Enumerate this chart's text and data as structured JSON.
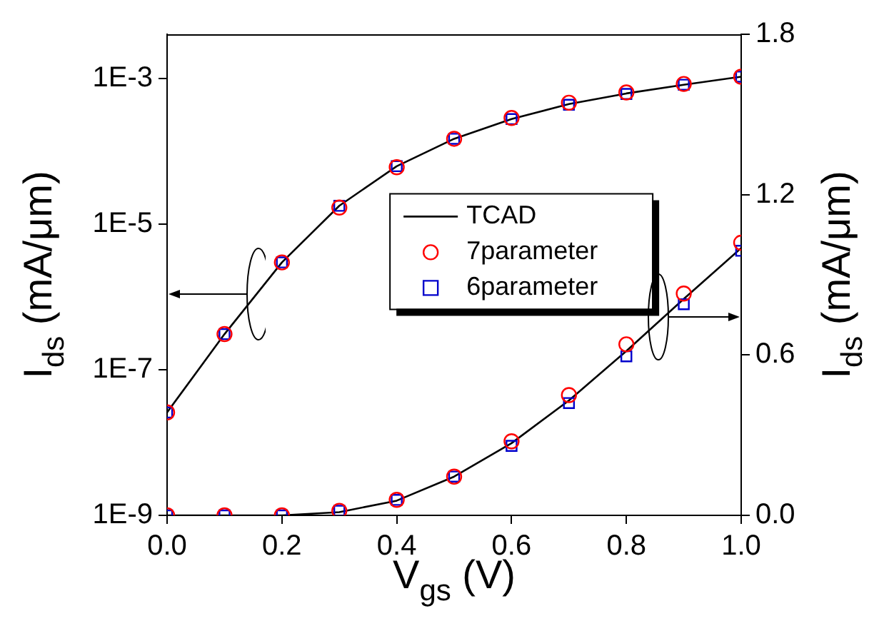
{
  "chart_data": {
    "type": "line",
    "xlabel": "V$_{gs}$ (V)",
    "ylabel": "I$_{ds}$ (mA/μm)",
    "y2label": "I$_{ds}$ (mA/μm)",
    "x": [
      0,
      0.1,
      0.2,
      0.3,
      0.4,
      0.5,
      0.6,
      0.7,
      0.8,
      0.9,
      1.0
    ],
    "xlim": [
      0,
      1.0
    ],
    "xticks": [
      {
        "value": 0,
        "label": "0.0"
      },
      {
        "value": 0.2,
        "label": "0.2"
      },
      {
        "value": 0.4,
        "label": "0.4"
      },
      {
        "value": 0.6,
        "label": "0.6"
      },
      {
        "value": 0.8,
        "label": "0.8"
      },
      {
        "value": 1.0,
        "label": "1.0"
      }
    ],
    "log": "y",
    "ylim": [
      1e-09,
      0.0041
    ],
    "yticks": [
      {
        "value": 1e-09,
        "label": "1E-9"
      },
      {
        "value": 1e-07,
        "label": "1E-7"
      },
      {
        "value": 1e-05,
        "label": "1E-5"
      },
      {
        "value": 0.001,
        "label": "1E-3"
      }
    ],
    "y2lim": [
      0,
      1.8
    ],
    "y2ticks": [
      {
        "value": 0,
        "label": "0.0"
      },
      {
        "value": 0.6,
        "label": "0.6"
      },
      {
        "value": 1.2,
        "label": "1.2"
      },
      {
        "value": 1.8,
        "label": "1.8"
      }
    ],
    "grid": false,
    "legend": "center",
    "series": [
      {
        "name": "TCAD",
        "type": "line",
        "axis": "y",
        "color": "#000000",
        "marker": "none",
        "line_style": "solid",
        "values": [
          2.6e-08,
          3.1e-07,
          3e-06,
          1.8e-05,
          6.3e-05,
          0.00015,
          0.00028,
          0.00045,
          0.00063,
          0.00083,
          0.00107
        ]
      },
      {
        "name": "7parameter",
        "type": "scatter",
        "axis": "y",
        "color": "#ff0000",
        "marker": "circle",
        "values": [
          2.6e-08,
          3.1e-07,
          3e-06,
          1.7e-05,
          6.1e-05,
          0.00015,
          0.00029,
          0.00047,
          0.00065,
          0.00085,
          0.00107
        ]
      },
      {
        "name": "6parameter",
        "type": "scatter",
        "axis": "y",
        "color": "#0000cc",
        "marker": "square",
        "values": [
          2.6e-08,
          3.1e-07,
          3e-06,
          1.8e-05,
          6.3e-05,
          0.00015,
          0.00028,
          0.00044,
          0.00062,
          0.00083,
          0.00107
        ]
      },
      {
        "type": "line",
        "axis": "y2",
        "color": "#000000",
        "marker": "none",
        "line_style": "solid",
        "values": [
          0,
          0,
          0,
          0.012,
          0.055,
          0.145,
          0.27,
          0.43,
          0.615,
          0.81,
          1.0
        ]
      },
      {
        "type": "scatter",
        "axis": "y2",
        "color": "#ff0000",
        "marker": "circle",
        "values": [
          0,
          0,
          0,
          0.017,
          0.058,
          0.145,
          0.277,
          0.45,
          0.64,
          0.83,
          1.02
        ]
      },
      {
        "type": "scatter",
        "axis": "y2",
        "color": "#0000cc",
        "marker": "square",
        "values": [
          0,
          0,
          0,
          0.017,
          0.058,
          0.145,
          0.26,
          0.42,
          0.595,
          0.79,
          0.99
        ]
      }
    ]
  }
}
